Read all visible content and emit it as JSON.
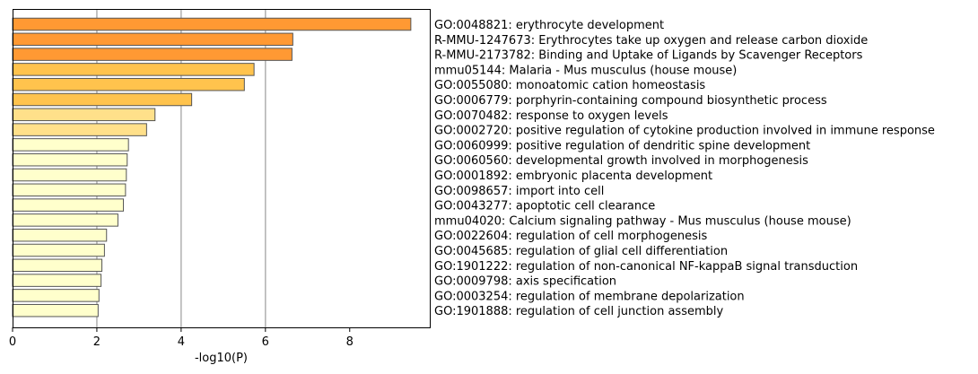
{
  "chart_data": {
    "type": "bar",
    "orientation": "horizontal",
    "xlabel": "-log10(P)",
    "xlim": [
      0,
      9.9
    ],
    "xticks": [
      0,
      2,
      4,
      6,
      8
    ],
    "grid": "vertical lines at 2, 4, 6",
    "categories": [
      "GO:0048821: erythrocyte development",
      "R-MMU-1247673: Erythrocytes take up oxygen and release carbon dioxide",
      "R-MMU-2173782: Binding and Uptake of Ligands by Scavenger Receptors",
      "mmu05144: Malaria - Mus musculus (house mouse)",
      "GO:0055080: monoatomic cation homeostasis",
      "GO:0006779: porphyrin-containing compound biosynthetic process",
      "GO:0070482: response to oxygen levels",
      "GO:0002720: positive regulation of cytokine production involved in immune response",
      "GO:0060999: positive regulation of dendritic spine development",
      "GO:0060560: developmental growth involved in morphogenesis",
      "GO:0001892: embryonic placenta development",
      "GO:0098657: import into cell",
      "GO:0043277: apoptotic cell clearance",
      "mmu04020: Calcium signaling pathway - Mus musculus (house mouse)",
      "GO:0022604: regulation of cell morphogenesis",
      "GO:0045685: regulation of glial cell differentiation",
      "GO:1901222: regulation of non-canonical NF-kappaB signal transduction",
      "GO:0009798: axis specification",
      "GO:0003254: regulation of membrane depolarization",
      "GO:1901888: regulation of cell junction assembly"
    ],
    "values": [
      9.45,
      6.65,
      6.63,
      5.73,
      5.5,
      4.25,
      3.38,
      3.18,
      2.75,
      2.72,
      2.7,
      2.68,
      2.63,
      2.5,
      2.23,
      2.18,
      2.12,
      2.1,
      2.05,
      2.03
    ],
    "colors": [
      "#ff9933",
      "#ff9933",
      "#ff9933",
      "#ffc34d",
      "#ffc34d",
      "#ffc34d",
      "#ffe08a",
      "#ffe08a",
      "#ffffcc",
      "#ffffcc",
      "#ffffcc",
      "#ffffcc",
      "#ffffcc",
      "#ffffcc",
      "#ffffcc",
      "#ffffcc",
      "#ffffcc",
      "#ffffcc",
      "#ffffcc",
      "#ffffcc"
    ]
  }
}
